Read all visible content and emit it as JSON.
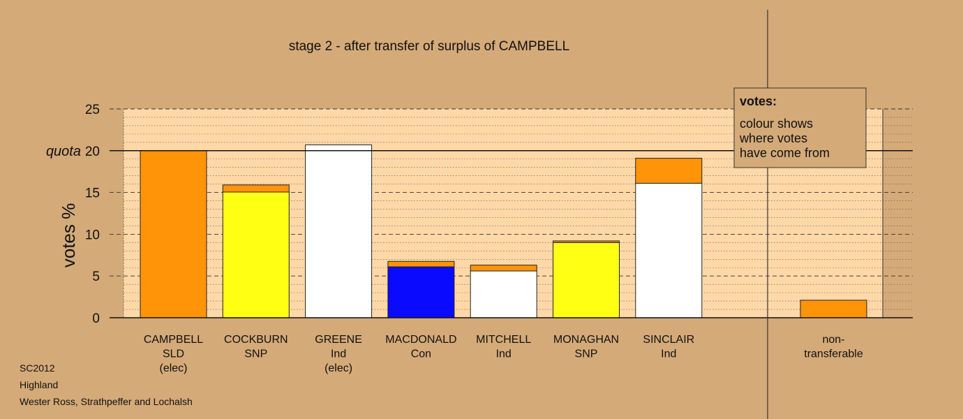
{
  "chart_data": {
    "type": "bar",
    "stacked": true,
    "title": "stage 2 - after transfer of surplus of CAMPBELL",
    "ylabel": "votes %",
    "ylim": [
      0,
      25
    ],
    "yticks": [
      "0",
      "5",
      "10",
      "15",
      "20",
      "25"
    ],
    "quota": {
      "label": "quota",
      "value": 20
    },
    "grid": true,
    "colors": {
      "SLD": "#FF9408",
      "SNP": "#FFFF14",
      "Ind": "#FFFFFF",
      "Con": "#0A0AFF"
    },
    "candidates": [
      {
        "lines": [
          "CAMPBELL",
          "SLD",
          "(elec)"
        ],
        "segments": [
          {
            "from": "SLD",
            "value": 20.0
          }
        ]
      },
      {
        "lines": [
          "COCKBURN",
          "SNP"
        ],
        "segments": [
          {
            "from": "SNP",
            "value": 15.05
          },
          {
            "from": "SLD",
            "value": 0.85
          }
        ]
      },
      {
        "lines": [
          "GREENE",
          "Ind",
          "(elec)"
        ],
        "segments": [
          {
            "from": "Ind",
            "value": 20.7
          }
        ]
      },
      {
        "lines": [
          "MACDONALD",
          "Con"
        ],
        "segments": [
          {
            "from": "Con",
            "value": 6.1
          },
          {
            "from": "SLD",
            "value": 0.65
          }
        ]
      },
      {
        "lines": [
          "MITCHELL",
          "Ind"
        ],
        "segments": [
          {
            "from": "Ind",
            "value": 5.6
          },
          {
            "from": "SLD",
            "value": 0.7
          }
        ]
      },
      {
        "lines": [
          "MONAGHAN",
          "SNP"
        ],
        "segments": [
          {
            "from": "SNP",
            "value": 9.0
          },
          {
            "from": "SLD",
            "value": 0.2
          }
        ]
      },
      {
        "lines": [
          "SINCLAIR",
          "Ind"
        ],
        "segments": [
          {
            "from": "Ind",
            "value": 16.1
          },
          {
            "from": "SLD",
            "value": 3.0
          }
        ]
      }
    ],
    "nontransferable": {
      "lines": [
        "non-",
        "transferable"
      ],
      "segments": [
        {
          "from": "SLD",
          "value": 2.1
        }
      ]
    },
    "legend": {
      "title": "votes:",
      "lines": [
        "colour shows",
        "where votes",
        "have come from"
      ]
    }
  },
  "footer": [
    "SC2012",
    "Highland",
    "Wester Ross, Strathpeffer and Lochalsh"
  ]
}
